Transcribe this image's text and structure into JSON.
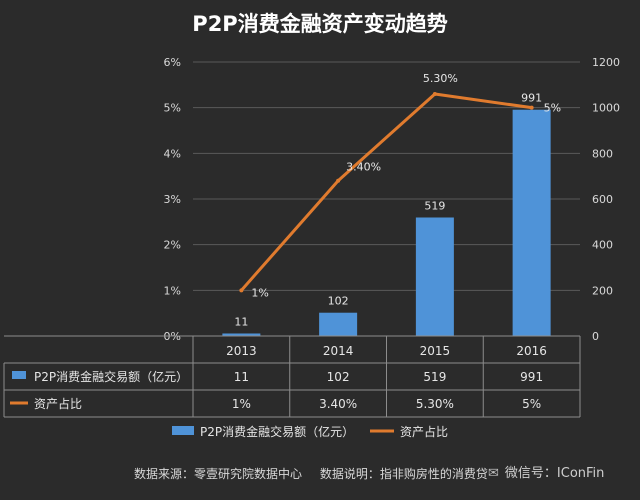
{
  "title": "P2P消费金融资产变动趋势",
  "footer": {
    "source": "数据来源：零壹研究院数据中心",
    "note": "数据说明：指非购房性的消费贷",
    "watermark": "微信号：IConFin"
  },
  "chart_data": {
    "type": "bar",
    "title": "P2P消费金融资产变动趋势",
    "categories": [
      "2013",
      "2014",
      "2015",
      "2016"
    ],
    "series": [
      {
        "name": "P2P消费金融交易额（亿元）",
        "type": "bar",
        "axis": "right",
        "values": [
          11,
          102,
          519,
          991
        ],
        "labels": [
          "11",
          "102",
          "519",
          "991"
        ],
        "color": "#4f93d8"
      },
      {
        "name": "资产占比",
        "type": "line",
        "axis": "left",
        "values": [
          1,
          3.4,
          5.3,
          5
        ],
        "labels": [
          "1%",
          "3.40%",
          "5.30%",
          "5%"
        ],
        "color": "#e07b2e"
      }
    ],
    "y_left": {
      "min": 0,
      "max": 6,
      "ticks": [
        "0%",
        "1%",
        "2%",
        "3%",
        "4%",
        "5%",
        "6%"
      ]
    },
    "y_right": {
      "min": 0,
      "max": 1200,
      "ticks": [
        "0",
        "200",
        "400",
        "600",
        "800",
        "1000",
        "1200"
      ]
    },
    "grid": true,
    "legend_position": "bottom",
    "data_table": {
      "rows": [
        {
          "name": "P2P消费金融交易额（亿元）",
          "cells": [
            "11",
            "102",
            "519",
            "991"
          ]
        },
        {
          "name": "资产占比",
          "cells": [
            "1%",
            "3.40%",
            "5.30%",
            "5%"
          ]
        }
      ]
    }
  }
}
